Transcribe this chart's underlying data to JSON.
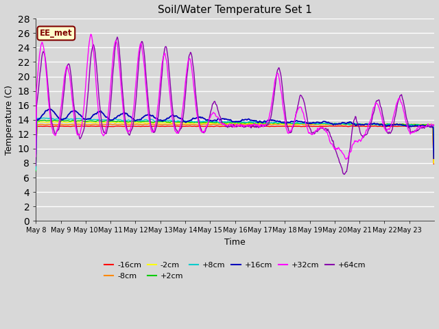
{
  "title": "Soil/Water Temperature Set 1",
  "xlabel": "Time",
  "ylabel": "Temperature (C)",
  "ylim": [
    0,
    28
  ],
  "yticks": [
    0,
    2,
    4,
    6,
    8,
    10,
    12,
    14,
    16,
    18,
    20,
    22,
    24,
    26,
    28
  ],
  "background_color": "#d8d8d8",
  "plot_bg_color": "#d8d8d8",
  "grid_color": "#ffffff",
  "annotation_text": "EE_met",
  "annotation_bg": "#ffffcc",
  "annotation_border": "#800000",
  "series_colors": {
    "-16cm": "#ff0000",
    "-8cm": "#ff8800",
    "-2cm": "#ffff00",
    "+2cm": "#00cc00",
    "+8cm": "#00cccc",
    "+16cm": "#0000bb",
    "+32cm": "#ff00ff",
    "+64cm": "#8800aa"
  },
  "xtick_labels": [
    "May 8",
    "May 9",
    "May 10",
    "May 11",
    "May 12",
    "May 13",
    "May 14",
    "May 15",
    "May 16",
    "May 17",
    "May 18",
    "May 19",
    "May 20",
    "May 21",
    "May 22",
    "May 23"
  ]
}
